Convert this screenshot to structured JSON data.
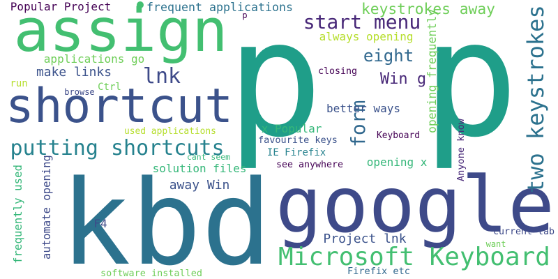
{
  "colors": {
    "background": "#ffffff",
    "palette": [
      "#440154",
      "#482878",
      "#3e4a89",
      "#31688e",
      "#26828e",
      "#1f9e89",
      "#35b779",
      "#6ece58",
      "#b5de2b"
    ]
  },
  "words": [
    {
      "text": "p",
      "color": "#1f9e89",
      "vertical": false
    },
    {
      "text": "p",
      "color": "#1f9e89",
      "vertical": false
    },
    {
      "text": "kbd",
      "color": "#2c728e",
      "vertical": false
    },
    {
      "text": "google",
      "color": "#3e4a89",
      "vertical": false
    },
    {
      "text": "assign",
      "color": "#43bf71",
      "vertical": false
    },
    {
      "text": "shortcut",
      "color": "#3b528b",
      "vertical": false
    },
    {
      "text": "Microsoft Keyboard",
      "color": "#43bf71",
      "vertical": false
    },
    {
      "text": "putting shortcuts",
      "color": "#26828e",
      "vertical": false
    },
    {
      "text": "two keystrokes",
      "color": "#2c728e",
      "vertical": true
    },
    {
      "text": "start menu",
      "color": "#482878",
      "vertical": false
    },
    {
      "text": "keystrokes away",
      "color": "#6ece58",
      "vertical": false
    },
    {
      "text": "eight",
      "color": "#31688e",
      "vertical": false
    },
    {
      "text": "lnk",
      "color": "#3e4a89",
      "vertical": false
    },
    {
      "text": "form",
      "color": "#31688e",
      "vertical": true
    },
    {
      "text": "Win g",
      "color": "#482878",
      "vertical": false
    },
    {
      "text": "Popular Project",
      "color": "#440154",
      "vertical": false
    },
    {
      "text": "frequent applications",
      "color": "#2c728e",
      "vertical": false
    },
    {
      "text": "always opening",
      "color": "#b5de2b",
      "vertical": false
    },
    {
      "text": "applications go",
      "color": "#6ece58",
      "vertical": false
    },
    {
      "text": "make links",
      "color": "#3b528b",
      "vertical": false
    },
    {
      "text": "opening frequently",
      "color": "#6ece58",
      "vertical": true
    },
    {
      "text": "better ways",
      "color": "#3b528b",
      "vertical": false
    },
    {
      "text": "x Popular",
      "color": "#35b779",
      "vertical": false
    },
    {
      "text": "solution files",
      "color": "#35b779",
      "vertical": false
    },
    {
      "text": "away Win",
      "color": "#3b528b",
      "vertical": false
    },
    {
      "text": "opening x",
      "color": "#35b779",
      "vertical": false
    },
    {
      "text": "Project lnk",
      "color": "#3b528b",
      "vertical": false
    },
    {
      "text": "frequently used",
      "color": "#35b779",
      "vertical": true
    },
    {
      "text": "automate opening",
      "color": "#3e4a89",
      "vertical": true
    },
    {
      "text": "closing",
      "color": "#440154",
      "vertical": false
    },
    {
      "text": "Keyboard",
      "color": "#440154",
      "vertical": false
    },
    {
      "text": "favourite keys",
      "color": "#3b528b",
      "vertical": false
    },
    {
      "text": "IE Firefix",
      "color": "#26828e",
      "vertical": false
    },
    {
      "text": "see anywhere",
      "color": "#440154",
      "vertical": false
    },
    {
      "text": "cant seem",
      "color": "#35b779",
      "vertical": false
    },
    {
      "text": "used applications",
      "color": "#b5de2b",
      "vertical": false
    },
    {
      "text": "Anyone know",
      "color": "#482878",
      "vertical": true
    },
    {
      "text": "browse",
      "color": "#3e4a89",
      "vertical": false
    },
    {
      "text": "Ctrl",
      "color": "#6ece58",
      "vertical": false
    },
    {
      "text": "run",
      "color": "#b5de2b",
      "vertical": false
    },
    {
      "text": "F4",
      "color": "#3e4a89",
      "vertical": false
    },
    {
      "text": "current tab",
      "color": "#3e4a89",
      "vertical": false
    },
    {
      "text": "want",
      "color": "#6ece58",
      "vertical": false
    },
    {
      "text": "software installed",
      "color": "#6ece58",
      "vertical": false
    },
    {
      "text": "Firefix etc",
      "color": "#31688e",
      "vertical": false
    },
    {
      "text": "p",
      "color": "#440154",
      "vertical": false
    }
  ]
}
